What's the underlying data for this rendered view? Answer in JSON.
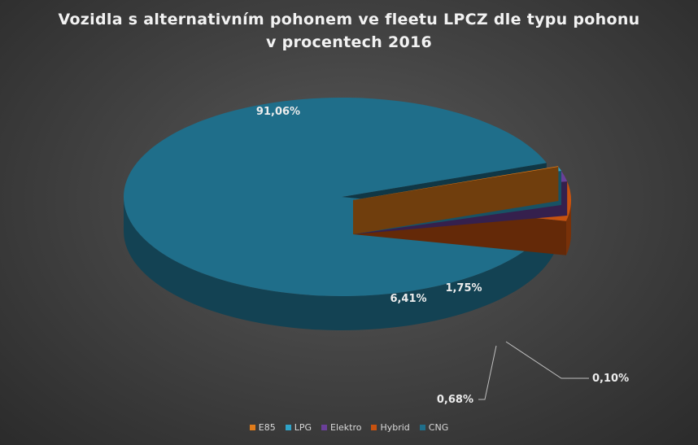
{
  "chart_data": {
    "type": "pie",
    "title": "Vozidla s alternativním pohonem ve fleetu LPCZ dle typu pohonu",
    "subtitle": "v procentech 2016",
    "slices": [
      {
        "name": "E85",
        "value": 0.1,
        "label": "0,10%",
        "color": "#e07b1a"
      },
      {
        "name": "LPG",
        "value": 0.68,
        "label": "0,68%",
        "color": "#2fa3c8"
      },
      {
        "name": "Elektro",
        "value": 1.75,
        "label": "1,75%",
        "color": "#6a3f99"
      },
      {
        "name": "Hybrid",
        "value": 6.41,
        "label": "6,41%",
        "color": "#c8520f"
      },
      {
        "name": "CNG",
        "value": 91.06,
        "label": "91,06%",
        "color": "#1f6e8a"
      }
    ],
    "legend_position": "bottom",
    "three_d": true
  }
}
